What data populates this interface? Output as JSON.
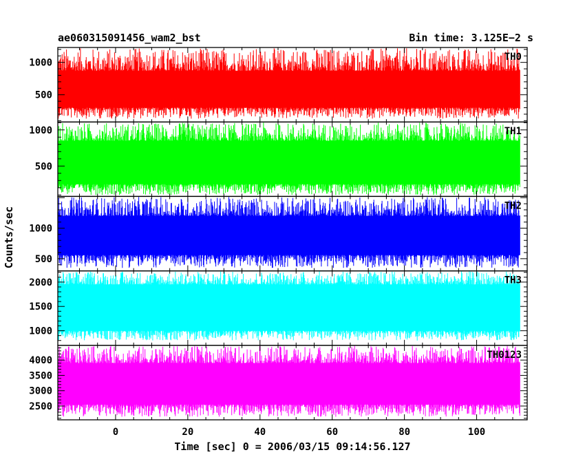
{
  "chart_data": {
    "type": "line",
    "title_left": "ae060315091456_wam2_bst",
    "title_right": "Bin time: 3.125E−2 s",
    "xlabel": "Time [sec] 0 = 2006/03/15 09:14:56.127",
    "ylabel": "Counts/sec",
    "xlim": [
      -16,
      114
    ],
    "x_ticks": [
      0,
      20,
      40,
      60,
      80,
      100
    ],
    "x_tick_labels": [
      "0",
      "20",
      "40",
      "60",
      "80",
      "100"
    ],
    "x_data_range": [
      -16,
      112
    ],
    "bin_time": 0.03125,
    "grid": false,
    "panels": [
      {
        "name": "TH0",
        "color": "#ff0000",
        "ylim": [
          80,
          1230
        ],
        "y_ticks": [
          500,
          1000
        ],
        "y_tick_labels": [
          "500",
          "1000"
        ],
        "signal_range": [
          130,
          1220
        ],
        "dense_range": [
          300,
          870
        ]
      },
      {
        "name": "TH1",
        "color": "#00ff00",
        "ylim": [
          80,
          1110
        ],
        "y_ticks": [
          500,
          1000
        ],
        "y_tick_labels": [
          "500",
          "1000"
        ],
        "signal_range": [
          100,
          1100
        ],
        "dense_range": [
          250,
          850
        ]
      },
      {
        "name": "TH2",
        "color": "#0000ff",
        "ylim": [
          300,
          1520
        ],
        "y_ticks": [
          500,
          1000
        ],
        "y_tick_labels": [
          "500",
          "1000"
        ],
        "signal_range": [
          350,
          1510
        ],
        "dense_range": [
          560,
          1200
        ]
      },
      {
        "name": "TH3",
        "color": "#00ffff",
        "ylim": [
          700,
          2230
        ],
        "y_ticks": [
          1000,
          1500,
          2000
        ],
        "y_tick_labels": [
          "1000",
          "1500",
          "2000"
        ],
        "signal_range": [
          800,
          2220
        ],
        "dense_range": [
          1000,
          1950
        ]
      },
      {
        "name": "TH0123",
        "color": "#ff00ff",
        "ylim": [
          2050,
          4480
        ],
        "y_ticks": [
          2500,
          3000,
          3500,
          4000
        ],
        "y_tick_labels": [
          "2500",
          "3000",
          "3500",
          "4000"
        ],
        "signal_range": [
          2150,
          4460
        ],
        "dense_range": [
          2550,
          3900
        ]
      }
    ]
  }
}
